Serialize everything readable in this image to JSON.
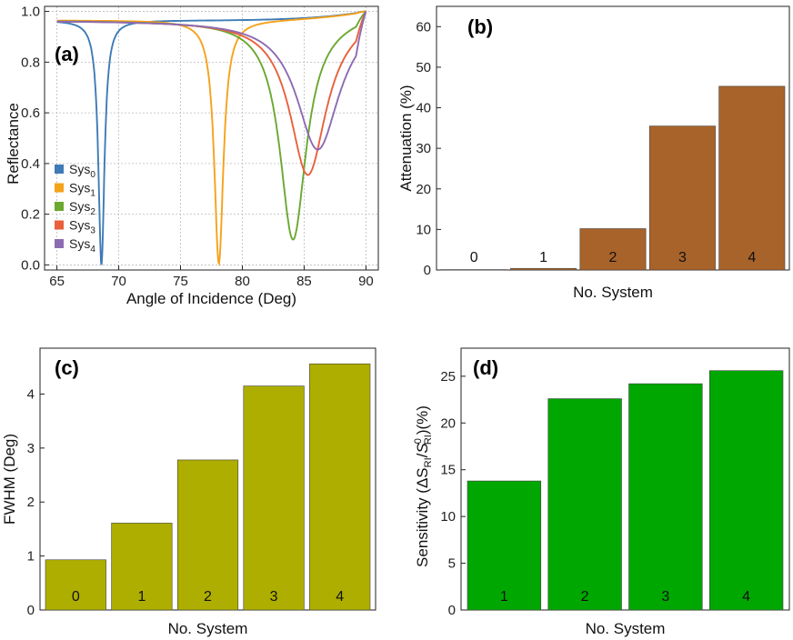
{
  "chart_data": [
    {
      "id": "a",
      "type": "line",
      "panel_label": "(a)",
      "xlabel": "Angle of Incidence (Deg)",
      "ylabel": "Reflectance",
      "xlim": [
        64,
        91
      ],
      "ylim": [
        -0.02,
        1.02
      ],
      "xticks": [
        65,
        70,
        75,
        80,
        85,
        90
      ],
      "yticks": [
        0.0,
        0.2,
        0.4,
        0.6,
        0.8,
        1.0
      ],
      "ytick_labels": [
        "0.0",
        "0.2",
        "0.4",
        "0.6",
        "0.8",
        "1.0"
      ],
      "grid": true,
      "legend_position": "bottom-left",
      "series": [
        {
          "name": "Sys",
          "sub": "0",
          "color": "#3f7bb6",
          "dip_center": 68.6,
          "dip_width": 0.3,
          "dip_min": 0.0,
          "baseline": 0.965
        },
        {
          "name": "Sys",
          "sub": "1",
          "color": "#f5a21b",
          "dip_center": 78.1,
          "dip_width": 0.45,
          "dip_min": 0.005,
          "baseline": 0.965
        },
        {
          "name": "Sys",
          "sub": "2",
          "color": "#6aa82f",
          "dip_center": 84.1,
          "dip_width": 1.3,
          "dip_min": 0.1,
          "baseline": 0.965
        },
        {
          "name": "Sys",
          "sub": "3",
          "color": "#e8603c",
          "dip_center": 85.3,
          "dip_width": 1.8,
          "dip_min": 0.355,
          "baseline": 0.965
        },
        {
          "name": "Sys",
          "sub": "4",
          "color": "#8d6bb3",
          "dip_center": 86.1,
          "dip_width": 2.1,
          "dip_min": 0.455,
          "baseline": 0.965
        }
      ]
    },
    {
      "id": "b",
      "type": "bar",
      "panel_label": "(b)",
      "xlabel": "No. System",
      "ylabel": "Attenuation (%)",
      "categories": [
        "0",
        "1",
        "2",
        "3",
        "4"
      ],
      "values": [
        0.1,
        0.4,
        10.2,
        35.5,
        45.3
      ],
      "ylim": [
        0,
        65
      ],
      "yticks": [
        0,
        10,
        20,
        30,
        40,
        50,
        60
      ],
      "color": "#a8632a"
    },
    {
      "id": "c",
      "type": "bar",
      "panel_label": "(c)",
      "xlabel": "No. System",
      "ylabel": "FWHM (Deg)",
      "categories": [
        "0",
        "1",
        "2",
        "3",
        "4"
      ],
      "values": [
        0.93,
        1.61,
        2.78,
        4.15,
        4.56
      ],
      "ylim": [
        0,
        4.85
      ],
      "yticks": [
        0,
        1,
        2,
        3,
        4
      ],
      "color": "#aeae00"
    },
    {
      "id": "d",
      "type": "bar",
      "panel_label": "(d)",
      "xlabel": "No. System",
      "ylabel": "Sensitivity (ΔS_RI/S^0_RI)(%)",
      "categories": [
        "1",
        "2",
        "3",
        "4"
      ],
      "values": [
        13.8,
        22.6,
        24.2,
        25.6
      ],
      "ylim": [
        0,
        28
      ],
      "yticks": [
        0,
        5,
        10,
        15,
        20,
        25
      ],
      "color": "#00a700"
    }
  ]
}
